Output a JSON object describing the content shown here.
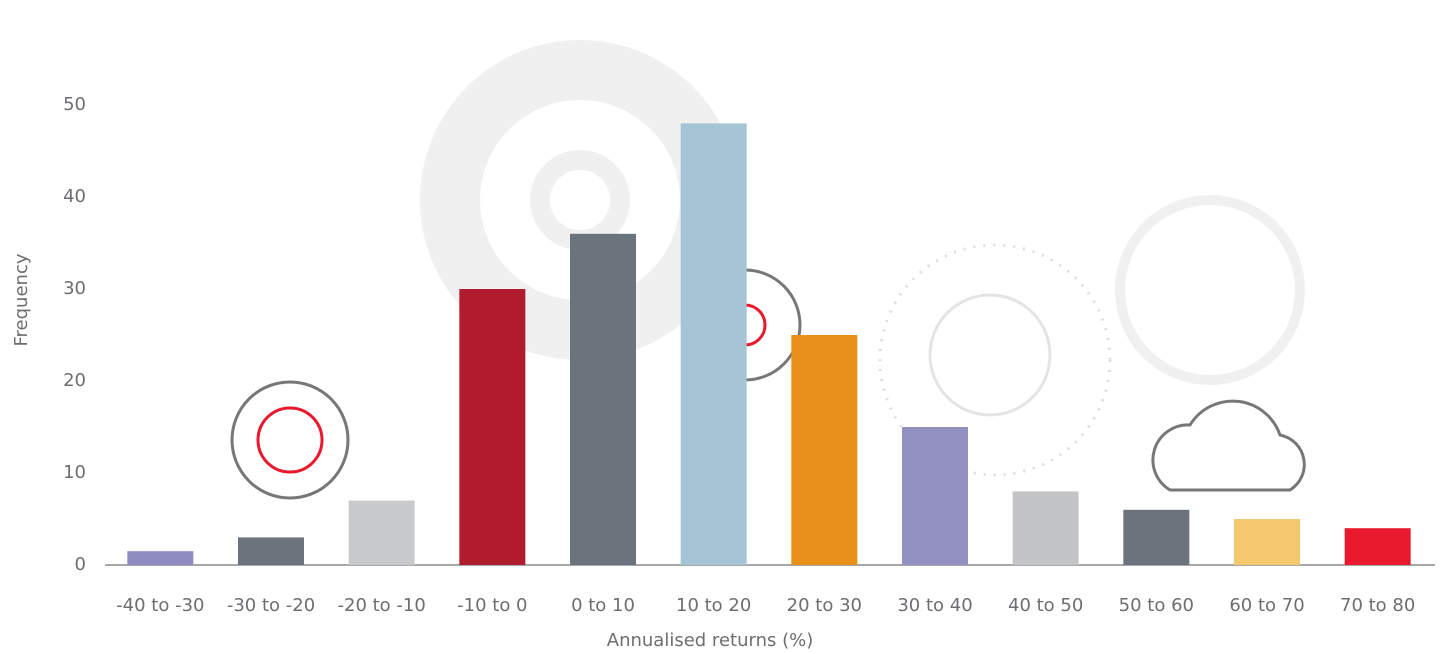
{
  "chart_data": {
    "type": "bar",
    "categories": [
      "-40 to -30",
      "-30 to -20",
      "-20 to -10",
      "-10 to 0",
      "0 to 10",
      "10 to 20",
      "20 to 30",
      "30 to 40",
      "40 to 50",
      "50 to 60",
      "60 to 70",
      "70 to 80"
    ],
    "values": [
      1.5,
      3,
      7,
      30,
      36,
      48,
      25,
      15,
      8,
      6,
      5,
      4
    ],
    "colors": [
      "#8e8cc0",
      "#6c737c",
      "#c8c9cb",
      "#b01c2e",
      "#6b737c",
      "#a5c4d6",
      "#e8901a",
      "#9391c2",
      "#c2c4c6",
      "#6c737c",
      "#f5c76e",
      "#e8192c"
    ],
    "xlabel": "Annualised returns (%)",
    "ylabel": "Frequency",
    "ylim": [
      0,
      50
    ],
    "yticks": [
      0,
      10,
      20,
      30,
      40,
      50
    ],
    "grid": false
  }
}
